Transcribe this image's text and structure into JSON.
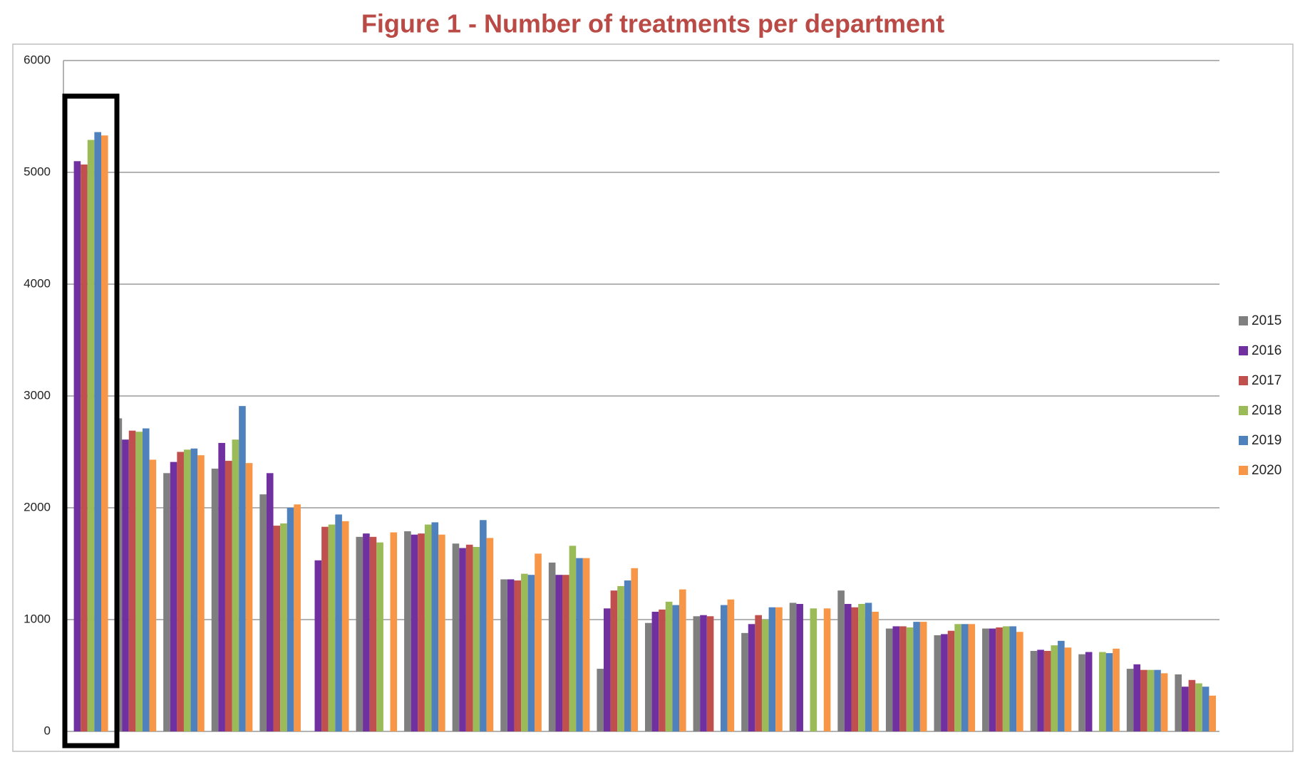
{
  "chart_data": {
    "type": "bar",
    "title": "Figure 1 - Number of treatments per department",
    "categories": [
      null,
      null,
      null,
      null,
      null,
      null,
      null,
      null,
      null,
      null,
      null,
      null,
      null,
      null,
      null,
      null,
      null,
      null,
      null,
      null,
      null,
      null,
      null,
      null
    ],
    "series": [
      {
        "name": "2015",
        "color": "#7f7f7f",
        "values": [
          null,
          2800,
          2310,
          2350,
          2120,
          null,
          1740,
          1790,
          1680,
          1360,
          1510,
          560,
          970,
          1030,
          880,
          1150,
          1260,
          920,
          860,
          920,
          720,
          690,
          560,
          510
        ]
      },
      {
        "name": "2016",
        "color": "#7030a0",
        "values": [
          5100,
          2610,
          2410,
          2580,
          2310,
          1530,
          1770,
          1760,
          1640,
          1360,
          1400,
          1100,
          1070,
          1040,
          960,
          1140,
          1140,
          940,
          870,
          920,
          730,
          710,
          600,
          400
        ]
      },
      {
        "name": "2017",
        "color": "#c0504d",
        "values": [
          5070,
          2690,
          2500,
          2420,
          1840,
          1830,
          1740,
          1770,
          1670,
          1350,
          1400,
          1260,
          1090,
          1030,
          1040,
          null,
          1110,
          940,
          900,
          930,
          720,
          null,
          550,
          460
        ]
      },
      {
        "name": "2018",
        "color": "#9bbb59",
        "values": [
          5290,
          2680,
          2520,
          2610,
          1860,
          1850,
          1690,
          1850,
          1650,
          1410,
          1660,
          1300,
          1160,
          null,
          1000,
          1100,
          1140,
          930,
          960,
          940,
          770,
          710,
          550,
          430
        ]
      },
      {
        "name": "2019",
        "color": "#4f81bd",
        "values": [
          5360,
          2710,
          2530,
          2910,
          2000,
          1940,
          null,
          1870,
          1890,
          1400,
          1550,
          1350,
          1130,
          1130,
          1110,
          null,
          1150,
          980,
          960,
          940,
          810,
          700,
          550,
          400
        ]
      },
      {
        "name": "2020",
        "color": "#f79646",
        "values": [
          5330,
          2430,
          2470,
          2400,
          2030,
          1880,
          1780,
          1760,
          1730,
          1590,
          1550,
          1460,
          1270,
          1180,
          1110,
          1100,
          1070,
          980,
          960,
          890,
          750,
          740,
          520,
          320
        ]
      }
    ],
    "ylim": [
      0,
      6000
    ],
    "yticks": [
      0,
      1000,
      2000,
      3000,
      4000,
      5000,
      6000
    ],
    "grid": true,
    "legend": "right"
  }
}
